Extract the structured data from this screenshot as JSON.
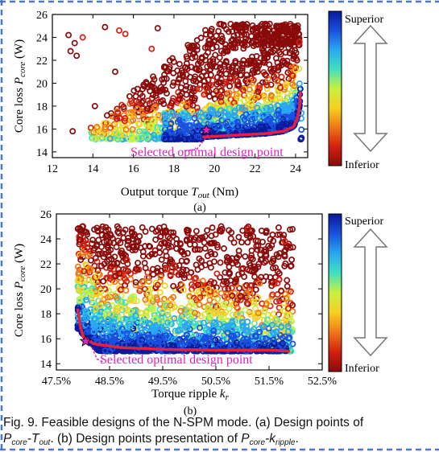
{
  "figure": {
    "caption_line1": "Fig. 9. Feasible designs of the N-SPM mode. (a) Design points of",
    "caption_line2_parts": [
      "P",
      "core",
      "-T",
      "out",
      ". (b) Design points presentation of ",
      "P",
      "core",
      "-k",
      "ripple",
      "."
    ]
  },
  "colorbar": {
    "top_label": "Superior",
    "bottom_label": "Inferior",
    "colors": [
      "#0a1a9a",
      "#1a50e0",
      "#28a8f0",
      "#40e0c0",
      "#c8f040",
      "#f8d020",
      "#f07818",
      "#d42010",
      "#8a0a0a"
    ]
  },
  "chart_data": [
    {
      "type": "scatter",
      "panel": "(a)",
      "xlabel_parts": [
        "Output torque ",
        "T",
        "out",
        " (Nm)"
      ],
      "ylabel_parts": [
        "Core loss ",
        "P",
        "core",
        " (W)"
      ],
      "xlim": [
        12,
        24.6
      ],
      "ylim": [
        13.5,
        26
      ],
      "xticks": [
        "12",
        "14",
        "16",
        "18",
        "20",
        "22",
        "24"
      ],
      "xtick_values": [
        12,
        14,
        16,
        18,
        20,
        22,
        24
      ],
      "yticks": [
        "14",
        "16",
        "18",
        "20",
        "22",
        "24",
        "26"
      ],
      "ytick_values": [
        14,
        16,
        18,
        20,
        22,
        24,
        26
      ],
      "pareto_front": [
        [
          19.4,
          15.3
        ],
        [
          20.5,
          15.4
        ],
        [
          21.5,
          15.5
        ],
        [
          22.5,
          15.6
        ],
        [
          23.4,
          15.8
        ],
        [
          23.9,
          16.2
        ],
        [
          24.1,
          17.0
        ],
        [
          24.2,
          18.0
        ],
        [
          24.25,
          19.3
        ]
      ],
      "selected_point": [
        19.6,
        15.9
      ],
      "annotation": "Selected optimal design point",
      "cluster_points": [
        [
          12.8,
          24.2
        ],
        [
          13.1,
          23.5
        ],
        [
          13.2,
          22.4
        ],
        [
          13.5,
          24.0
        ],
        [
          12.9,
          22.8
        ],
        [
          13.0,
          15.8
        ],
        [
          14.1,
          18.0
        ],
        [
          14.6,
          24.9
        ],
        [
          15.3,
          24.6
        ],
        [
          15.6,
          24.3
        ],
        [
          15.1,
          21.0
        ],
        [
          16.2,
          19.5
        ],
        [
          17.2,
          24.8
        ],
        [
          17.6,
          21.4
        ],
        [
          16.9,
          23.0
        ]
      ],
      "grade_note": "Colour encodes design grade from Superior (blue) to Inferior (red)"
    },
    {
      "type": "scatter",
      "panel": "(b)",
      "xlabel_parts": [
        "Torque ripple ",
        "k",
        "r",
        ""
      ],
      "ylabel_parts": [
        "Core loss ",
        "P",
        "core",
        " (W)"
      ],
      "xlim": [
        47.5,
        52.5
      ],
      "ylim": [
        13.5,
        26
      ],
      "xticks": [
        "47.5%",
        "48.5%",
        "49.5%",
        "50.5%",
        "51.5%",
        "52.5%"
      ],
      "xtick_values": [
        47.5,
        48.5,
        49.5,
        50.5,
        51.5,
        52.5
      ],
      "yticks": [
        "14",
        "16",
        "18",
        "20",
        "22",
        "24",
        "26"
      ],
      "ytick_values": [
        14,
        16,
        18,
        20,
        22,
        24,
        26
      ],
      "pareto_front": [
        [
          47.9,
          18.4
        ],
        [
          47.95,
          17.0
        ],
        [
          48.0,
          16.2
        ],
        [
          48.2,
          15.6
        ],
        [
          48.7,
          15.3
        ],
        [
          49.5,
          15.15
        ],
        [
          50.5,
          15.1
        ],
        [
          51.5,
          15.1
        ],
        [
          51.9,
          15.0
        ]
      ],
      "selected_point": [
        48.05,
        15.8
      ],
      "annotation": "Selected optimal design point",
      "cluster_points": [
        [
          47.95,
          24.8
        ],
        [
          48.0,
          25.0
        ],
        [
          49.3,
          24.8
        ],
        [
          49.7,
          24.5
        ],
        [
          50.6,
          25.0
        ],
        [
          51.1,
          24.8
        ],
        [
          51.2,
          24.2
        ],
        [
          51.8,
          23.8
        ],
        [
          51.9,
          23.3
        ],
        [
          50.9,
          22.5
        ],
        [
          50.1,
          20.8
        ],
        [
          49.0,
          21.6
        ]
      ],
      "grade_note": "Colour encodes design grade from Superior (blue) to Inferior (red)"
    }
  ]
}
